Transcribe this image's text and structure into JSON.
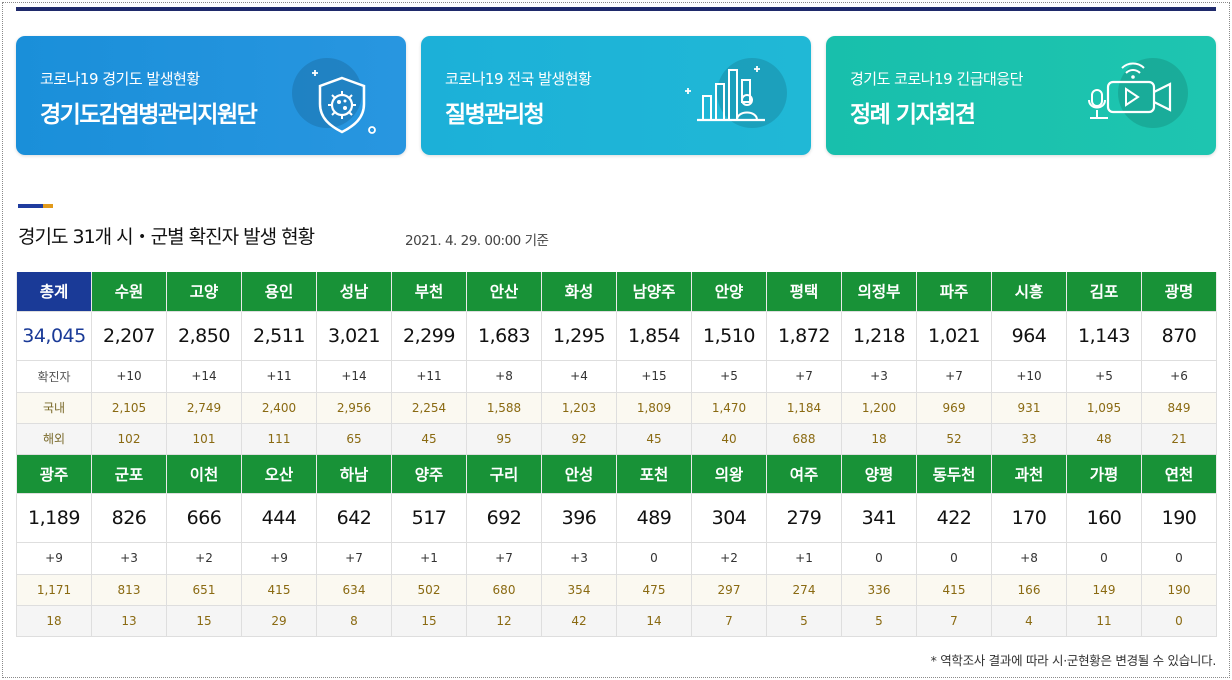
{
  "banners": [
    {
      "sub": "코로나19 경기도 발생현황",
      "main": "경기도감염병관리지원단",
      "icon": "virus-shield-icon"
    },
    {
      "sub": "코로나19 전국 발생현황",
      "main": "질병관리청",
      "icon": "bar-chart-person-icon"
    },
    {
      "sub": "경기도 코로나19 긴급대응단",
      "main": "정례 기자회견",
      "icon": "video-camera-mic-icon"
    }
  ],
  "section": {
    "title": "경기도 31개 시・군별 확진자 발생 현황",
    "date": "2021. 4. 29. 00:00 기준"
  },
  "table": {
    "row_labels": {
      "increase": "확진자",
      "domestic": "국내",
      "abroad": "해외"
    },
    "blocks": [
      {
        "cities": [
          "총계",
          "수원",
          "고양",
          "용인",
          "성남",
          "부천",
          "안산",
          "화성",
          "남양주",
          "안양",
          "평택",
          "의정부",
          "파주",
          "시흥",
          "김포",
          "광명"
        ],
        "totals": [
          "34,045",
          "2,207",
          "2,850",
          "2,511",
          "3,021",
          "2,299",
          "1,683",
          "1,295",
          "1,854",
          "1,510",
          "1,872",
          "1,218",
          "1,021",
          "964",
          "1,143",
          "870"
        ],
        "increase": [
          "+10",
          "+14",
          "+11",
          "+14",
          "+11",
          "+8",
          "+4",
          "+15",
          "+5",
          "+7",
          "+3",
          "+7",
          "+10",
          "+5",
          "+6"
        ],
        "domestic": [
          "2,105",
          "2,749",
          "2,400",
          "2,956",
          "2,254",
          "1,588",
          "1,203",
          "1,809",
          "1,470",
          "1,184",
          "1,200",
          "969",
          "931",
          "1,095",
          "849"
        ],
        "abroad": [
          "102",
          "101",
          "111",
          "65",
          "45",
          "95",
          "92",
          "45",
          "40",
          "688",
          "18",
          "52",
          "33",
          "48",
          "21"
        ]
      },
      {
        "cities": [
          "광주",
          "군포",
          "이천",
          "오산",
          "하남",
          "양주",
          "구리",
          "안성",
          "포천",
          "의왕",
          "여주",
          "양평",
          "동두천",
          "과천",
          "가평",
          "연천"
        ],
        "totals": [
          "1,189",
          "826",
          "666",
          "444",
          "642",
          "517",
          "692",
          "396",
          "489",
          "304",
          "279",
          "341",
          "422",
          "170",
          "160",
          "190"
        ],
        "increase": [
          "+9",
          "+3",
          "+2",
          "+9",
          "+7",
          "+1",
          "+7",
          "+3",
          "0",
          "+2",
          "+1",
          "0",
          "0",
          "+8",
          "0",
          "0"
        ],
        "domestic": [
          "1,171",
          "813",
          "651",
          "415",
          "634",
          "502",
          "680",
          "354",
          "475",
          "297",
          "274",
          "336",
          "415",
          "166",
          "149",
          "190"
        ],
        "abroad": [
          "18",
          "13",
          "15",
          "29",
          "8",
          "15",
          "12",
          "42",
          "14",
          "7",
          "5",
          "5",
          "7",
          "4",
          "11",
          "0"
        ]
      }
    ]
  },
  "footnote": "* 역학조사 결과에 따라 시·군현황은 변경될 수 있습니다.",
  "colors": {
    "header_green": "#189237",
    "total_blue": "#1a3a97",
    "banner1": "#1a8fd9",
    "banner2": "#1cb0d8",
    "banner3": "#18bfac",
    "domestic_text": "#8a6a12"
  }
}
